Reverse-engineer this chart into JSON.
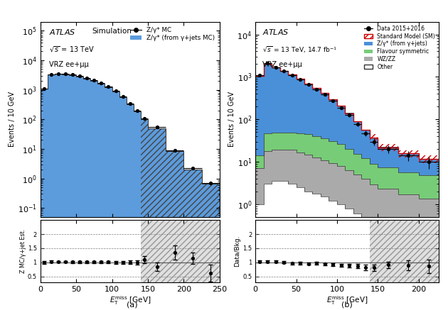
{
  "panel_a": {
    "bin_edges": [
      0,
      10,
      20,
      30,
      40,
      50,
      60,
      70,
      80,
      90,
      100,
      110,
      120,
      130,
      140,
      150,
      175,
      200,
      225,
      250
    ],
    "z_mc": [
      1100,
      3300,
      3500,
      3400,
      3200,
      2900,
      2500,
      2100,
      1700,
      1300,
      900,
      600,
      350,
      200,
      110,
      55,
      9,
      2.2,
      0.7
    ],
    "gamma_est": [
      1100,
      3200,
      3400,
      3300,
      3100,
      2800,
      2400,
      2000,
      1600,
      1250,
      860,
      570,
      330,
      190,
      100,
      50,
      8.5,
      2.0,
      0.65
    ],
    "hatch_start_bin": 14,
    "ratio_y": [
      1.0,
      1.03,
      1.02,
      1.02,
      1.01,
      1.01,
      1.01,
      1.01,
      1.01,
      1.01,
      1.0,
      1.0,
      1.0,
      1.0,
      1.1,
      0.85,
      1.35,
      1.15,
      0.62
    ],
    "ratio_err": [
      0.05,
      0.03,
      0.03,
      0.03,
      0.03,
      0.03,
      0.03,
      0.03,
      0.03,
      0.03,
      0.05,
      0.05,
      0.06,
      0.08,
      0.12,
      0.15,
      0.25,
      0.2,
      0.3
    ],
    "legend1": "Z/γ* MC",
    "legend2": "Z/γ* (from γ+jets MC)",
    "ylabel_main": "Events / 10 GeV",
    "ylabel_ratio": "Z MC/γ+jet Est.",
    "xlabel": "$E_{\\mathrm{T}}^{\\mathrm{miss}}$ [GeV]",
    "blue_color": "#4a90d9",
    "xlim": [
      0,
      250
    ],
    "ylim_main": [
      0.05,
      200000
    ],
    "ylim_ratio": [
      0.3,
      2.5
    ],
    "ratio_hlines": [
      0.5,
      1.0,
      1.5,
      2.0
    ]
  },
  "panel_b": {
    "bin_edges": [
      0,
      10,
      20,
      30,
      40,
      50,
      60,
      70,
      80,
      90,
      100,
      110,
      120,
      130,
      140,
      150,
      175,
      200,
      225
    ],
    "z_gamma": [
      1050,
      2000,
      1600,
      1350,
      1100,
      850,
      650,
      500,
      380,
      270,
      185,
      120,
      75,
      45,
      28,
      15,
      10,
      7
    ],
    "flavour_sym": [
      7,
      28,
      30,
      30,
      30,
      30,
      30,
      28,
      25,
      22,
      18,
      14,
      10,
      8,
      6,
      5,
      4,
      3.5
    ],
    "wzzz": [
      6,
      15,
      16,
      16,
      16,
      14,
      13,
      11,
      9.5,
      8,
      7,
      5.5,
      4.5,
      3.5,
      2.5,
      2,
      1.5,
      1.2
    ],
    "other": [
      1,
      3,
      3.5,
      3.5,
      3,
      2.5,
      2,
      1.8,
      1.5,
      1.2,
      1,
      0.8,
      0.6,
      0.5,
      0.4,
      0.3,
      0.2,
      0.15
    ],
    "sm_total": [
      1064,
      2046,
      1649,
      1399,
      1149,
      896,
      695,
      540,
      415,
      301,
      211,
      140,
      90,
      57,
      37,
      22,
      15.7,
      11.65
    ],
    "data_y": [
      1100,
      2100,
      1700,
      1400,
      1100,
      870,
      660,
      510,
      390,
      275,
      190,
      125,
      78,
      47,
      30,
      20,
      14,
      10
    ],
    "data_err": [
      33,
      46,
      41,
      37,
      33,
      30,
      26,
      23,
      20,
      17,
      14,
      11,
      9,
      7,
      6,
      4,
      3.7,
      3.2
    ],
    "hatch_start_bin": 14,
    "ratio_y": [
      1.03,
      1.03,
      1.03,
      1.0,
      0.96,
      0.97,
      0.95,
      0.97,
      0.94,
      0.91,
      0.9,
      0.89,
      0.87,
      0.82,
      0.81,
      0.91,
      0.89,
      0.86
    ],
    "ratio_err": [
      0.04,
      0.03,
      0.04,
      0.04,
      0.04,
      0.04,
      0.04,
      0.04,
      0.04,
      0.05,
      0.05,
      0.06,
      0.07,
      0.09,
      0.12,
      0.12,
      0.18,
      0.23
    ],
    "legend_data": "Data 2015+2016",
    "legend_sm": "Standard Model (SM)",
    "legend_z": "Z/γ* (from γ+jets)",
    "legend_fs": "Flavour symmetric",
    "legend_wz": "WZ/ZZ",
    "legend_other": "Other",
    "ylabel_main": "Events / 10 GeV",
    "ylabel_ratio": "Data/Bkg.",
    "xlabel": "$E_{\\mathrm{T}}^{\\mathrm{miss}}$ [GeV]",
    "blue_color": "#4a90d9",
    "green_color": "#77cc77",
    "gray_color": "#aaaaaa",
    "red_color": "#cc0000",
    "xlim": [
      0,
      225
    ],
    "ylim_main": [
      0.5,
      20000
    ],
    "ylim_ratio": [
      0.3,
      2.5
    ],
    "ratio_hlines": [
      0.5,
      1.0,
      1.5,
      2.0
    ]
  },
  "fig_label_a": "(a)",
  "fig_label_b": "(b)"
}
